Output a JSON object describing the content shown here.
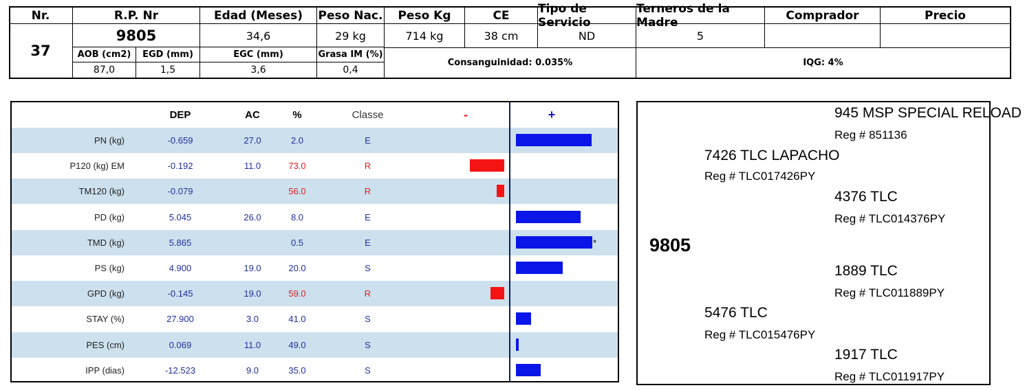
{
  "animal": {
    "headers": {
      "nr": "Nr.",
      "rp": "R.P. Nr",
      "edad": "Edad (Meses)",
      "peso_nac": "Peso Nac.",
      "peso_kg": "Peso Kg",
      "ce": "CE",
      "tipo_servicio": "Tipo de Servicio",
      "terneros": "Terneros de la Madre",
      "comprador": "Comprador",
      "precio": "Precio"
    },
    "values": {
      "nr": "37",
      "rp": "9805",
      "edad": "34,6",
      "peso_nac": "29 kg",
      "peso_kg": "714 kg",
      "ce": "38 cm",
      "tipo_servicio": "ND",
      "terneros": "5",
      "comprador": "",
      "precio": ""
    },
    "carcass_headers": {
      "aob": "AOB (cm2)",
      "egd": "EGD (mm)",
      "egc": "EGC (mm)",
      "grasa": "Grasa IM (%)"
    },
    "carcass_values": {
      "aob": "87,0",
      "egd": "1,5",
      "egc": "3,6",
      "grasa": "0,4"
    },
    "consanguinidad": "Consanguinidad: 0.035%",
    "iqg": "IQG: 4%"
  },
  "epd": {
    "headers": {
      "dep": "DEP",
      "ac": "AC",
      "pct": "%",
      "classe": "Classe",
      "minus": "-",
      "plus": "+"
    },
    "rows": [
      {
        "label": "PN (kg)",
        "dep": "-0.659",
        "ac": "27.0",
        "pct": "2.0",
        "classe": "E",
        "bar": 0.98,
        "side": "pos",
        "star": ""
      },
      {
        "label": "P120 (kg) EM",
        "dep": "-0.192",
        "ac": "11.0",
        "pct": "73.0",
        "classe": "R",
        "bar": 0.27,
        "side": "neg",
        "star": ""
      },
      {
        "label": "TM120 (kg)",
        "dep": "-0.079",
        "ac": "",
        "pct": "56.0",
        "classe": "R",
        "bar": 0.06,
        "side": "neg",
        "star": ""
      },
      {
        "label": "PD (kg)",
        "dep": "5.045",
        "ac": "26.0",
        "pct": "8.0",
        "classe": "E",
        "bar": 0.84,
        "side": "pos",
        "star": ""
      },
      {
        "label": "TMD (kg)",
        "dep": "5.865",
        "ac": "",
        "pct": "0.5",
        "classe": "E",
        "bar": 0.99,
        "side": "pos",
        "star": "*"
      },
      {
        "label": "PS (kg)",
        "dep": "4.900",
        "ac": "19.0",
        "pct": "20.0",
        "classe": "S",
        "bar": 0.61,
        "side": "pos",
        "star": ""
      },
      {
        "label": "GPD (kg)",
        "dep": "-0.145",
        "ac": "19.0",
        "pct": "59.0",
        "classe": "R",
        "bar": 0.11,
        "side": "neg",
        "star": ""
      },
      {
        "label": "STAY (%)",
        "dep": "27.900",
        "ac": "3.0",
        "pct": "41.0",
        "classe": "S",
        "bar": 0.2,
        "side": "pos",
        "star": ""
      },
      {
        "label": "PES (cm)",
        "dep": "0.069",
        "ac": "11.0",
        "pct": "49.0",
        "classe": "S",
        "bar": 0.03,
        "side": "pos",
        "star": ""
      },
      {
        "label": "IPP (dias)",
        "dep": "-12.523",
        "ac": "9.0",
        "pct": "35.0",
        "classe": "S",
        "bar": 0.32,
        "side": "pos",
        "star": ""
      }
    ],
    "colors": {
      "positive": "#0a16e8",
      "negative": "#f51414",
      "row_alt": "#cde0ee"
    }
  },
  "pedigree": {
    "animal": "9805",
    "sire": {
      "name": "7426 TLC  LAPACHO",
      "reg": "Reg # TLC017426PY"
    },
    "dam": {
      "name": "5476 TLC",
      "reg": "Reg # TLC015476PY"
    },
    "sire_sire": {
      "name": "945 MSP SPECIAL RELOAD",
      "reg": "Reg # 851136"
    },
    "sire_dam": {
      "name": "4376 TLC",
      "reg": "Reg # TLC014376PY"
    },
    "dam_sire": {
      "name": "1889 TLC",
      "reg": "Reg # TLC011889PY"
    },
    "dam_dam": {
      "name": "1917 TLC",
      "reg": "Reg # TLC011917PY"
    }
  }
}
